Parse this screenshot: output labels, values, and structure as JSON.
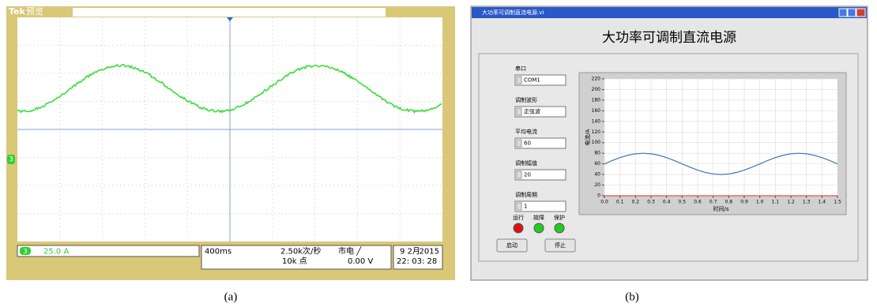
{
  "panel_a": {
    "brand": "Tek",
    "mode": "预览",
    "channel_marker": "3",
    "channel": "3",
    "scale": "25.0 A",
    "timebase": "400ms",
    "sample_rate": "2.50k次/秒",
    "points": "10k 点",
    "trigger": "市电 ╱",
    "trigger_level": "0.00 V",
    "date": "9 2月",
    "year": "2015",
    "time": "22: 03: 28",
    "caption": "(a)"
  },
  "panel_b": {
    "window_title": "大功率可调制直流电源.vi",
    "heading": "大功率可调制直流电源",
    "controls": [
      {
        "label": "串口",
        "value": "COM1"
      },
      {
        "label": "调制波形",
        "value": "正弦波"
      },
      {
        "label": "平均电流",
        "value": "60"
      },
      {
        "label": "调制幅值",
        "value": "20"
      },
      {
        "label": "调制周期",
        "value": "1"
      }
    ],
    "leds": [
      {
        "label": "运行",
        "color": "#e01010"
      },
      {
        "label": "故障",
        "color": "#22cc22"
      },
      {
        "label": "保护",
        "color": "#22cc22"
      }
    ],
    "buttons": [
      "启动",
      "停止"
    ],
    "caption": "(b)",
    "chart_data": {
      "type": "line",
      "x_label": "时间/s",
      "y_label": "电流/A",
      "xlim": [
        0,
        1.5
      ],
      "xticks": [
        {
          "value": 0,
          "label": "0.0"
        },
        0.1,
        0.2,
        0.3,
        0.4,
        0.5,
        0.6,
        0.7,
        0.8,
        0.9,
        {
          "value": 1,
          "label": "1.0"
        },
        1.1,
        1.2,
        1.3,
        1.4,
        1.5
      ],
      "ylim": [
        0,
        220
      ],
      "yticks": [
        0,
        20,
        40,
        60,
        80,
        100,
        120,
        140,
        160,
        180,
        200,
        220
      ],
      "grid": true,
      "x": [
        0,
        0.05,
        0.1,
        0.15,
        0.2,
        0.25,
        0.3,
        0.35,
        0.4,
        0.45,
        0.5,
        0.55,
        0.6,
        0.65,
        0.7,
        0.75,
        0.8,
        0.85,
        0.9,
        0.95,
        1,
        1.05,
        1.1,
        1.15,
        1.2,
        1.25,
        1.3,
        1.35,
        1.4,
        1.45,
        1.5
      ],
      "series": [
        {
          "color": "#3a7ab8",
          "values": [
            60,
            66.18,
            71.76,
            76.18,
            79.02,
            80,
            79.02,
            76.18,
            71.76,
            66.18,
            60,
            53.82,
            48.24,
            43.82,
            40.98,
            40,
            40.98,
            43.82,
            48.24,
            53.82,
            60,
            66.18,
            71.76,
            76.18,
            79.02,
            80,
            79.02,
            76.18,
            71.76,
            66.18,
            60
          ]
        }
      ]
    }
  }
}
